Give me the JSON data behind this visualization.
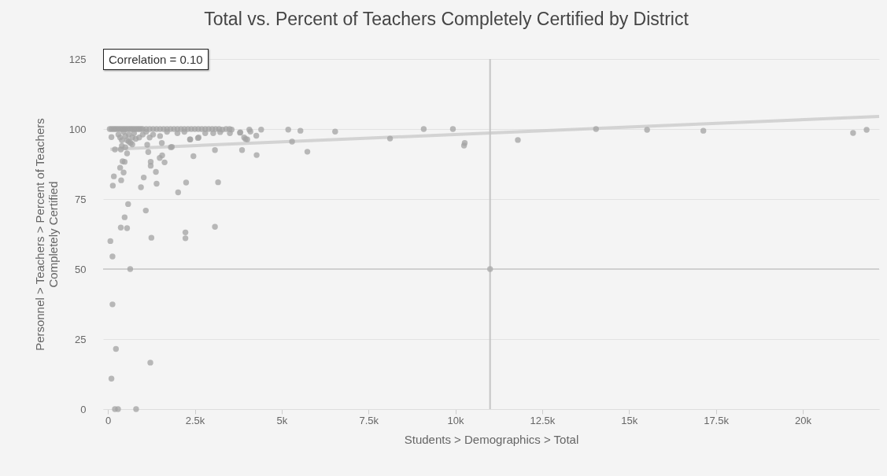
{
  "chart_data": {
    "type": "scatter",
    "title": "Total vs. Percent of Teachers Completely Certified by District",
    "xlabel": "Students > Demographics > Total",
    "ylabel": "Personnel > Teachers > Percent of Teachers Completely Certified",
    "annotations": [
      "Correlation = 0.10"
    ],
    "xlim": [
      -140,
      22200
    ],
    "xticks": [
      0,
      {
        "value": 2500,
        "label": "2.5k"
      },
      {
        "value": 5000,
        "label": "5k"
      },
      {
        "value": 7500,
        "label": "7.5k"
      },
      {
        "value": 10000,
        "label": "10k"
      },
      {
        "value": 12500,
        "label": "12.5k"
      },
      {
        "value": 15000,
        "label": "15k"
      },
      {
        "value": 17500,
        "label": "17.5k"
      },
      {
        "value": 20000,
        "label": "20k"
      }
    ],
    "ylim": [
      0,
      125
    ],
    "yticks": [
      0,
      25,
      50,
      75,
      100,
      125
    ],
    "grid": "y",
    "marker": "circle",
    "ref_lines": [
      {
        "axis": "x",
        "value": 11000,
        "color": "#c4c4c4"
      },
      {
        "axis": "y",
        "value": 50,
        "color": "#d0d0d0"
      }
    ],
    "series": [
      {
        "color": "#a3a3a3",
        "x": [
          70,
          130,
          130,
          230,
          100,
          200,
          290,
          810,
          1220,
          640,
          370,
          550,
          480,
          580,
          1090,
          1250,
          2230,
          2230,
          3080,
          2020,
          2250,
          3170,
          950,
          1400,
          1030,
          1380,
          140,
          170,
          380,
          350,
          450,
          420,
          480,
          1230,
          1230,
          1490,
          1560,
          1630,
          2460,
          3080,
          3860,
          200,
          370,
          550,
          1160,
          1840,
          2360,
          2590,
          100,
          1130,
          1550,
          3810,
          3960,
          4280,
          5740,
          5300,
          5190,
          5540,
          6540,
          4410,
          4070,
          4100,
          3800,
          3920,
          4010,
          4270,
          3560,
          3510,
          3290,
          3230,
          3030,
          2610,
          2370,
          1810,
          8120,
          9090,
          9930,
          10270,
          10250,
          11800,
          14050,
          15520,
          17140,
          21450,
          21840,
          50,
          100,
          150,
          200,
          250,
          300,
          350,
          400,
          450,
          500,
          550,
          600,
          650,
          700,
          750,
          800,
          850,
          900,
          950,
          1000,
          1100,
          1200,
          1300,
          1400,
          1500,
          1600,
          1700,
          1800,
          1900,
          2000,
          2100,
          2200,
          2300,
          2400,
          2500,
          2600,
          2700,
          2800,
          2900,
          3000,
          3100,
          3200,
          3400,
          3500,
          300,
          350,
          400,
          450,
          500,
          550,
          600,
          650,
          700,
          750,
          800,
          900,
          1000,
          1100,
          1200,
          400,
          500,
          600,
          700,
          1300,
          1500,
          1700,
          2000,
          2200,
          2800
        ],
        "values": [
          60,
          54.5,
          37.4,
          21.5,
          10.9,
          0,
          0,
          0,
          16.6,
          50,
          64.8,
          64.6,
          68.5,
          73.2,
          70.9,
          61.2,
          63.1,
          61,
          65.1,
          77.4,
          80.9,
          81,
          79.2,
          80.5,
          82.7,
          84.7,
          79.8,
          83.1,
          81.7,
          86.2,
          84.5,
          88.5,
          88.3,
          88.3,
          86.9,
          89.7,
          90.6,
          88.1,
          90.3,
          92.5,
          92.5,
          92.7,
          92.7,
          91.3,
          91.8,
          93.6,
          96.3,
          96.8,
          97.1,
          94.4,
          95,
          98.8,
          96.4,
          90.7,
          91.9,
          95.5,
          99.8,
          99.4,
          99.1,
          99.8,
          99.8,
          99.1,
          98.7,
          97,
          96.3,
          97.6,
          99.8,
          98.5,
          99.8,
          98.9,
          98.5,
          97,
          96.3,
          93.5,
          96.6,
          100,
          100,
          95,
          94.1,
          96.1,
          100,
          99.7,
          99.4,
          98.6,
          99.7,
          100,
          100,
          100,
          100,
          100,
          100,
          100,
          100,
          100,
          100,
          100,
          100,
          100,
          100,
          100,
          100,
          100,
          100,
          100,
          100,
          100,
          100,
          100,
          100,
          100,
          100,
          100,
          100,
          100,
          100,
          100,
          100,
          100,
          100,
          100,
          100,
          100,
          100,
          100,
          100,
          100,
          100,
          100,
          100,
          98,
          97,
          96,
          99,
          97.5,
          96,
          98,
          95,
          97,
          98.5,
          96.5,
          97,
          98,
          99,
          97,
          94,
          93.5,
          95.5,
          94.5,
          98,
          97.5,
          99,
          98.5,
          99,
          98.5
        ]
      },
      {
        "color": "#a8a8a8",
        "x": [
          11000
        ],
        "values": [
          50
        ]
      },
      {
        "type": "line",
        "color": "#cccccc",
        "marker": "none",
        "x": [
          70,
          22200
        ],
        "values": [
          92.8,
          104.5
        ]
      }
    ]
  }
}
